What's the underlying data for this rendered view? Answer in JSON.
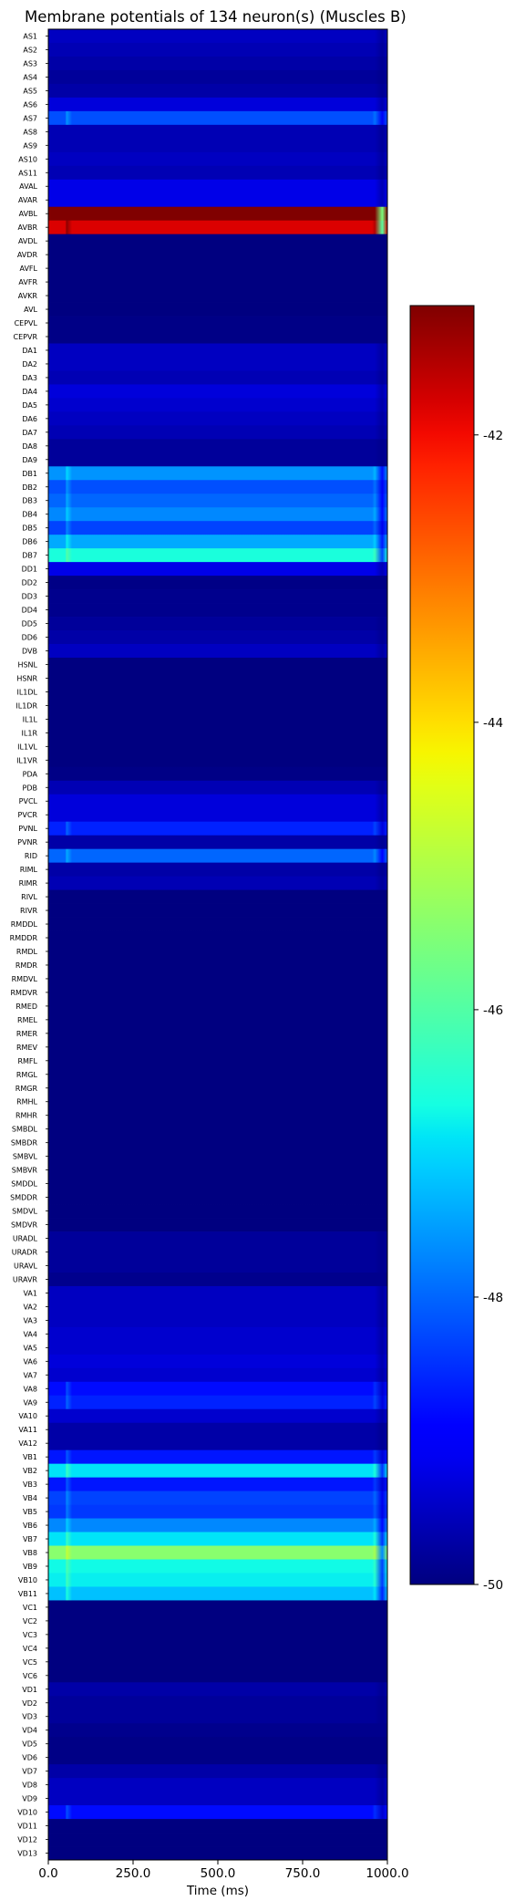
{
  "chart_data": {
    "type": "heatmap",
    "title": "Membrane potentials of 134 neuron(s) (Muscles B)",
    "xlabel": "Time (ms)",
    "ylabel": "",
    "xlim": [
      0,
      1000
    ],
    "x_ticks": [
      "0.0",
      "250.0",
      "500.0",
      "750.0",
      "1000.0"
    ],
    "x_tick_values": [
      0,
      250,
      500,
      750,
      1000
    ],
    "colormap": "jet",
    "colorbar": {
      "vmin": -50,
      "vmax": -41.1,
      "ticks": [
        "-42",
        "-44",
        "-46",
        "-48",
        "-50"
      ],
      "tick_values": [
        -42,
        -44,
        -46,
        -48,
        -50
      ],
      "placement": "right"
    },
    "time_course": {
      "onset_ms": [
        50,
        70
      ],
      "offset_ms": [
        955,
        985
      ],
      "baseline_mV": -50,
      "pre_onset_mV": -49.8
    },
    "neurons": [
      "AS1",
      "AS2",
      "AS3",
      "AS4",
      "AS5",
      "AS6",
      "AS7",
      "AS8",
      "AS9",
      "AS10",
      "AS11",
      "AVAL",
      "AVAR",
      "AVBL",
      "AVBR",
      "AVDL",
      "AVDR",
      "AVFL",
      "AVFR",
      "AVKR",
      "AVL",
      "CEPVL",
      "CEPVR",
      "DA1",
      "DA2",
      "DA3",
      "DA4",
      "DA5",
      "DA6",
      "DA7",
      "DA8",
      "DA9",
      "DB1",
      "DB2",
      "DB3",
      "DB4",
      "DB5",
      "DB6",
      "DB7",
      "DD1",
      "DD2",
      "DD3",
      "DD4",
      "DD5",
      "DD6",
      "DVB",
      "HSNL",
      "HSNR",
      "IL1DL",
      "IL1DR",
      "IL1L",
      "IL1R",
      "IL1VL",
      "IL1VR",
      "PDA",
      "PDB",
      "PVCL",
      "PVCR",
      "PVNL",
      "PVNR",
      "RID",
      "RIML",
      "RIMR",
      "RIVL",
      "RIVR",
      "RMDDL",
      "RMDDR",
      "RMDL",
      "RMDR",
      "RMDVL",
      "RMDVR",
      "RMED",
      "RMEL",
      "RMER",
      "RMEV",
      "RMFL",
      "RMGL",
      "RMGR",
      "RMHL",
      "RMHR",
      "SMBDL",
      "SMBDR",
      "SMBVL",
      "SMBVR",
      "SMDDL",
      "SMDDR",
      "SMDVL",
      "SMDVR",
      "URADL",
      "URADR",
      "URAVL",
      "URAVR",
      "VA1",
      "VA2",
      "VA3",
      "VA4",
      "VA5",
      "VA6",
      "VA7",
      "VA8",
      "VA9",
      "VA10",
      "VA11",
      "VA12",
      "VB1",
      "VB2",
      "VB3",
      "VB4",
      "VB5",
      "VB6",
      "VB7",
      "VB8",
      "VB9",
      "VB10",
      "VB11",
      "VC1",
      "VC2",
      "VC3",
      "VC4",
      "VC5",
      "VC6",
      "VD1",
      "VD2",
      "VD3",
      "VD4",
      "VD5",
      "VD6",
      "VD7",
      "VD8",
      "VD9",
      "VD10",
      "VD11",
      "VD12",
      "VD13"
    ],
    "plateau_mV": [
      -49.5,
      -49.6,
      -49.7,
      -49.8,
      -49.7,
      -49.3,
      -48.2,
      -49.6,
      -49.6,
      -49.5,
      -49.6,
      -49.2,
      -49.2,
      -41.1,
      -41.8,
      -50,
      -50,
      -50,
      -50,
      -50,
      -50,
      -49.95,
      -49.95,
      -49.5,
      -49.5,
      -49.6,
      -49.3,
      -49.4,
      -49.5,
      -49.6,
      -49.8,
      -49.8,
      -47.6,
      -48.2,
      -48.0,
      -47.7,
      -48.3,
      -47.4,
      -46.6,
      -49.2,
      -49.95,
      -49.9,
      -49.9,
      -49.8,
      -49.7,
      -49.5,
      -50,
      -50,
      -50,
      -50,
      -50,
      -50,
      -50,
      -50,
      -49.95,
      -49.6,
      -49.3,
      -49.3,
      -48.6,
      -49.7,
      -48.0,
      -49.7,
      -49.6,
      -50,
      -50,
      -50,
      -50,
      -50,
      -50,
      -50,
      -50,
      -50,
      -50,
      -50,
      -50,
      -50,
      -50,
      -50,
      -50,
      -50,
      -50,
      -50,
      -50,
      -50,
      -50,
      -50,
      -50,
      -50,
      -49.8,
      -49.8,
      -49.8,
      -49.9,
      -49.5,
      -49.5,
      -49.5,
      -49.4,
      -49.4,
      -49.3,
      -49.4,
      -48.8,
      -48.6,
      -49.4,
      -49.7,
      -49.7,
      -48.7,
      -46.9,
      -48.7,
      -48.3,
      -48.4,
      -47.7,
      -46.9,
      -45.4,
      -46.7,
      -46.8,
      -47.2,
      -50,
      -50,
      -50,
      -50,
      -50,
      -50,
      -49.7,
      -49.8,
      -49.8,
      -49.9,
      -49.95,
      -49.95,
      -49.7,
      -49.5,
      -49.5,
      -48.8,
      -50,
      -50,
      -50
    ]
  }
}
